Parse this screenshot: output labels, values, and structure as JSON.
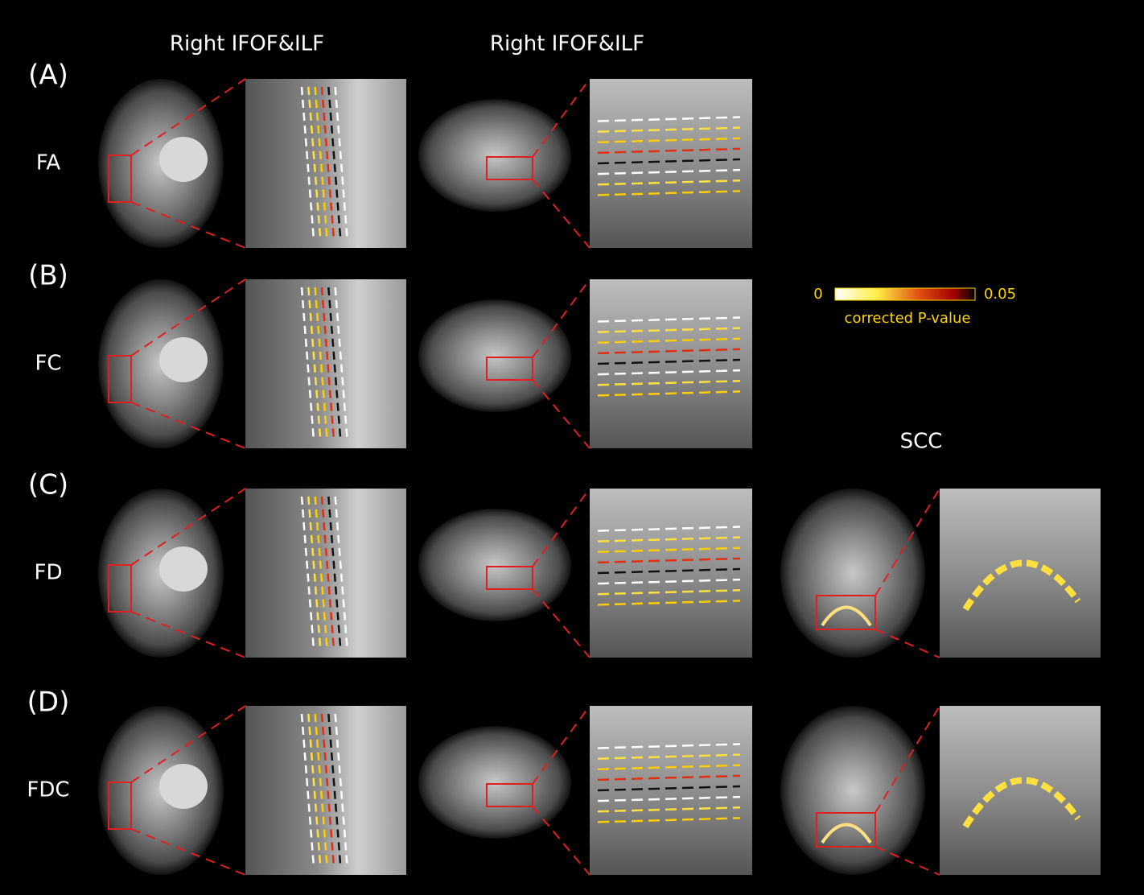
{
  "columns": {
    "axial_title": "Right IFOF&ILF",
    "sagittal_title": "Right IFOF&ILF",
    "scc_title": "SCC"
  },
  "rows": [
    {
      "letter": "(A)",
      "measure": "FA"
    },
    {
      "letter": "(B)",
      "measure": "FC"
    },
    {
      "letter": "(C)",
      "measure": "FD"
    },
    {
      "letter": "(D)",
      "measure": "FDC"
    }
  ],
  "colorbar": {
    "min_label": "0",
    "max_label": "0.05",
    "title": "corrected P-value"
  }
}
